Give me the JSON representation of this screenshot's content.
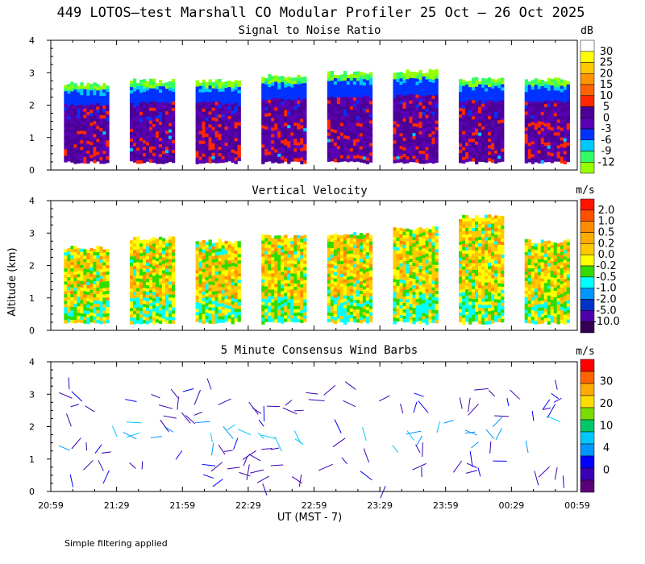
{
  "chart_data": {
    "title": "449 LOTOS—test Marshall CO Modular Profiler 25 Oct — 26 Oct 2025",
    "type": "heatmap",
    "xlabel": "UT  (MST - 7)",
    "ylabel": "Altitude (km)",
    "x_ticks": [
      "20:59",
      "21:29",
      "21:59",
      "22:29",
      "22:59",
      "23:29",
      "23:59",
      "00:29",
      "00:59"
    ],
    "y_ticks": [
      "0",
      "1",
      "2",
      "3",
      "4"
    ],
    "ylim": [
      0,
      4
    ],
    "footnote": "Simple filtering applied",
    "panels": [
      {
        "id": "snr",
        "title": "Signal to Noise Ratio",
        "type": "heatmap",
        "unit": "dB",
        "colorbar_labels": [
          "30",
          "25",
          "20",
          "15",
          "10",
          "5",
          "0",
          "-3",
          "-6",
          "-9",
          "-12"
        ],
        "colors": [
          "#ffffff",
          "#ffff00",
          "#ffc800",
          "#ff9600",
          "#ff6400",
          "#ff2800",
          "#4b0096",
          "#5a00b4",
          "#0032ff",
          "#00c8ff",
          "#32ff64",
          "#96ff00"
        ],
        "segments": [
          {
            "start": "20:59",
            "end": "21:29",
            "top_km": 2.65
          },
          {
            "start": "21:29",
            "end": "21:59",
            "top_km": 2.75
          },
          {
            "start": "21:59",
            "end": "22:29",
            "top_km": 2.75
          },
          {
            "start": "22:29",
            "end": "22:59",
            "top_km": 2.9
          },
          {
            "start": "22:59",
            "end": "23:29",
            "top_km": 3.0
          },
          {
            "start": "23:29",
            "end": "23:59",
            "top_km": 3.05
          },
          {
            "start": "23:59",
            "end": "00:29",
            "top_km": 2.8
          },
          {
            "start": "00:29",
            "end": "00:59",
            "top_km": 2.8
          }
        ]
      },
      {
        "id": "w",
        "title": "Vertical Velocity",
        "type": "heatmap",
        "unit": "m/s",
        "colorbar_labels": [
          "2.0",
          "1.0",
          "0.5",
          "0.2",
          "0.0",
          "-0.2",
          "-0.5",
          "-1.0",
          "-2.0",
          "-5.0",
          "-10.0"
        ],
        "colors": [
          "#ff1400",
          "#ff5000",
          "#ff8c00",
          "#ffaa00",
          "#ffc800",
          "#ffff00",
          "#32dc00",
          "#00ffff",
          "#0096ff",
          "#0032c8",
          "#5000aa",
          "#320050"
        ],
        "segments": [
          {
            "start": "20:59",
            "end": "21:29",
            "top_km": 2.55
          },
          {
            "start": "21:29",
            "end": "21:59",
            "top_km": 2.85
          },
          {
            "start": "21:59",
            "end": "22:29",
            "top_km": 2.75
          },
          {
            "start": "22:29",
            "end": "22:59",
            "top_km": 2.9
          },
          {
            "start": "22:59",
            "end": "23:29",
            "top_km": 3.0
          },
          {
            "start": "23:29",
            "end": "23:59",
            "top_km": 3.15
          },
          {
            "start": "23:59",
            "end": "00:29",
            "top_km": 3.5
          },
          {
            "start": "00:29",
            "end": "00:59",
            "top_km": 2.75
          }
        ]
      },
      {
        "id": "wind",
        "title": "5 Minute Consensus Wind Barbs",
        "type": "scatter",
        "unit": "m/s",
        "colorbar_labels": [
          "30",
          "20",
          "10",
          "4",
          "0"
        ],
        "colors": [
          "#ff0000",
          "#ff6400",
          "#ffaa00",
          "#ffdc00",
          "#78dc00",
          "#00c864",
          "#00c8ff",
          "#0096ff",
          "#0000ff",
          "#3c00b4",
          "#5a0078"
        ]
      }
    ]
  }
}
